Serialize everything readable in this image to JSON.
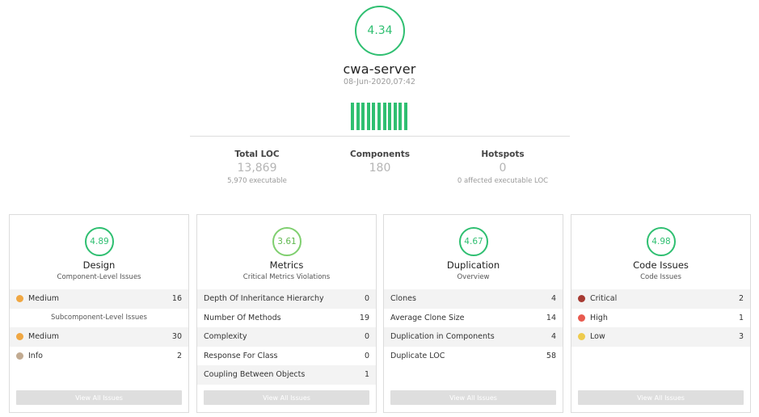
{
  "colors": {
    "accent": "#2fbf71",
    "medium": "#f0a742",
    "info": "#c2ab92",
    "critical": "#a63a32",
    "high": "#e85a4f",
    "low": "#eecb4d"
  },
  "project": {
    "score": "4.34",
    "name": "cwa-server",
    "date": "08-Jun-2020,07:42",
    "bar_count": 11
  },
  "stats": [
    {
      "label": "Total LOC",
      "value": "13,869",
      "sub": "5,970 executable"
    },
    {
      "label": "Components",
      "value": "180",
      "sub": ""
    },
    {
      "label": "Hotspots",
      "value": "0",
      "sub": "0 affected executable LOC"
    }
  ],
  "cards": [
    {
      "score": "4.89",
      "title": "Design",
      "subtitle": "Component-Level Issues",
      "rows": [
        {
          "name": "Medium",
          "value": "16",
          "dot": "medium"
        },
        {
          "name": "Subcomponent-Level Issues",
          "value": "",
          "center": true
        },
        {
          "name": "Medium",
          "value": "30",
          "dot": "medium"
        },
        {
          "name": "Info",
          "value": "2",
          "dot": "info"
        }
      ],
      "button": "View All Issues"
    },
    {
      "score": "3.61",
      "title": "Metrics",
      "subtitle": "Critical Metrics Violations",
      "rows": [
        {
          "name": "Depth Of Inheritance Hierarchy",
          "value": "0"
        },
        {
          "name": "Number Of Methods",
          "value": "19"
        },
        {
          "name": "Complexity",
          "value": "0"
        },
        {
          "name": "Response For Class",
          "value": "0"
        },
        {
          "name": "Coupling Between Objects",
          "value": "1"
        }
      ],
      "button": "View All Issues"
    },
    {
      "score": "4.67",
      "title": "Duplication",
      "subtitle": "Overview",
      "rows": [
        {
          "name": "Clones",
          "value": "4"
        },
        {
          "name": "Average Clone Size",
          "value": "14"
        },
        {
          "name": "Duplication in Components",
          "value": "4"
        },
        {
          "name": "Duplicate LOC",
          "value": "58"
        }
      ],
      "button": "View All Issues"
    },
    {
      "score": "4.98",
      "title": "Code Issues",
      "subtitle": "Code Issues",
      "rows": [
        {
          "name": "Critical",
          "value": "2",
          "dot": "critical"
        },
        {
          "name": "High",
          "value": "1",
          "dot": "high"
        },
        {
          "name": "Low",
          "value": "3",
          "dot": "low"
        }
      ],
      "button": "View All Issues"
    }
  ]
}
